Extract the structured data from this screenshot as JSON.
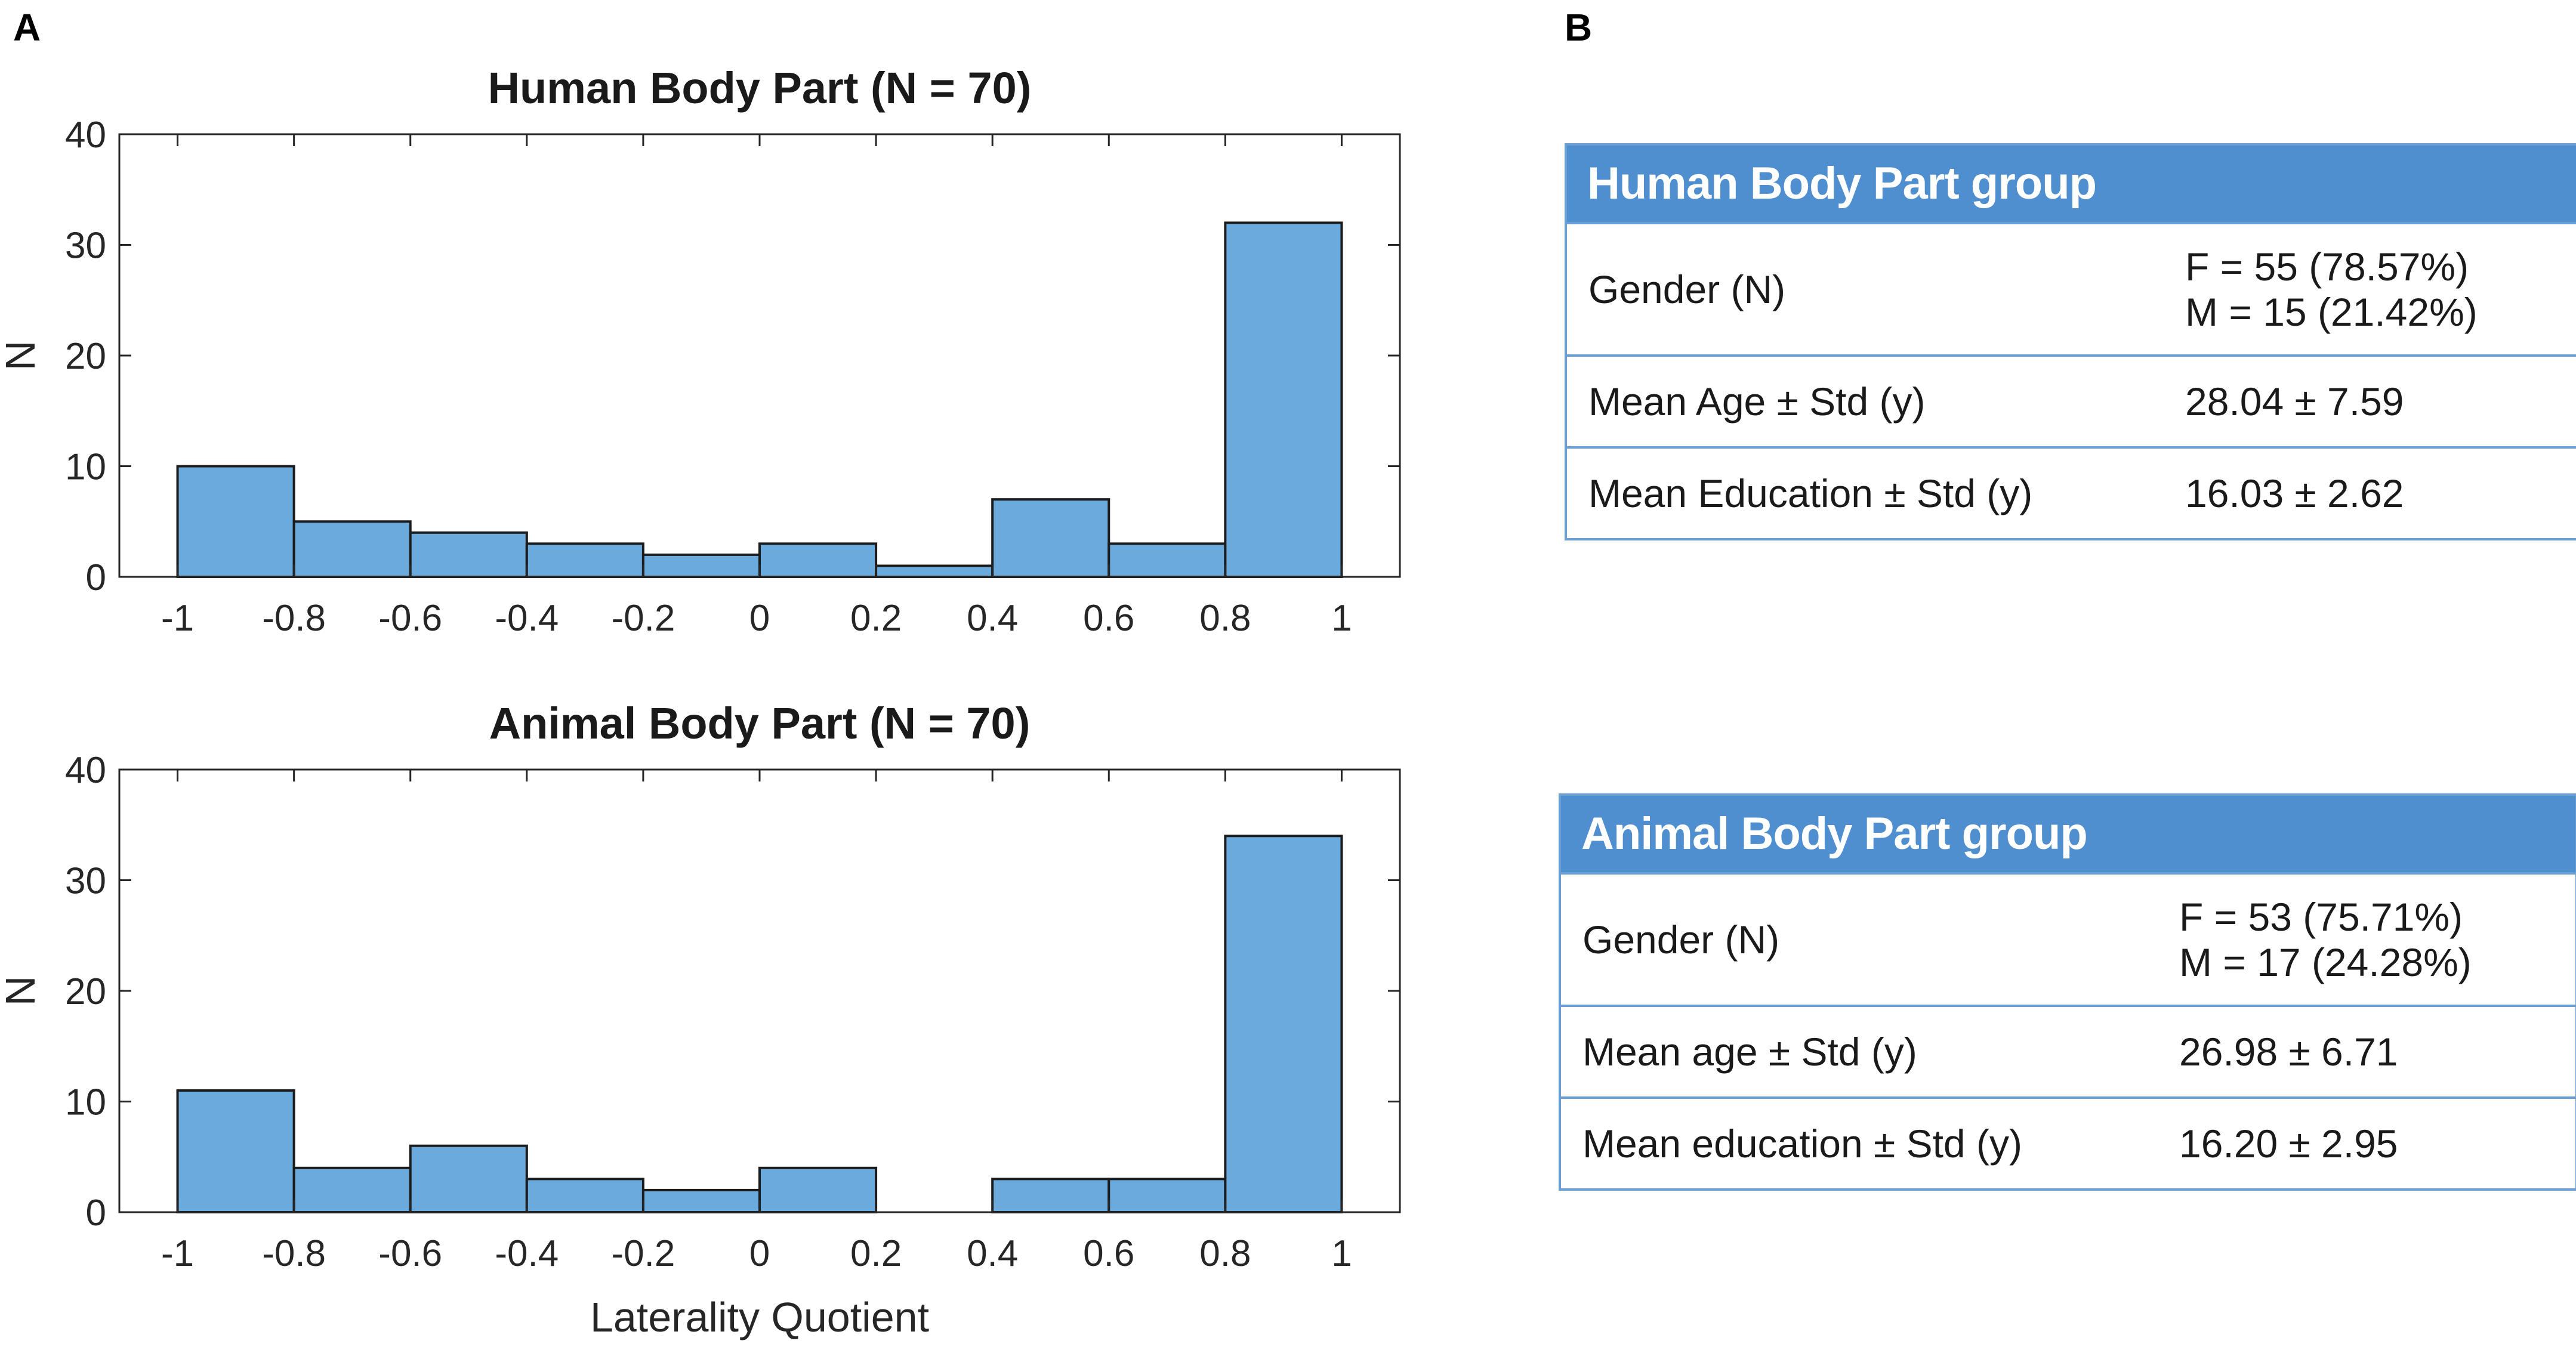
{
  "panels": {
    "a": "A",
    "b": "B"
  },
  "chart_data": [
    {
      "type": "bar",
      "title": "Human Body Part (N = 70)",
      "xlabel": "",
      "ylabel": "N",
      "bin_edges": [
        -1,
        -0.8,
        -0.6,
        -0.4,
        -0.2,
        0,
        0.2,
        0.4,
        0.6,
        0.8,
        1
      ],
      "values": [
        10,
        5,
        4,
        3,
        2,
        3,
        1,
        7,
        3,
        32
      ],
      "xlim": [
        -1.1,
        1.1
      ],
      "ylim": [
        0,
        40
      ],
      "xticks": [
        "-1",
        "-0.8",
        "-0.6",
        "-0.4",
        "-0.2",
        "0",
        "0.2",
        "0.4",
        "0.6",
        "0.8",
        "1"
      ],
      "yticks": [
        "0",
        "10",
        "20",
        "30",
        "40"
      ],
      "bar_color": "#6aaadd"
    },
    {
      "type": "bar",
      "title": "Animal Body Part (N = 70)",
      "xlabel": "Laterality Quotient",
      "ylabel": "N",
      "bin_edges": [
        -1,
        -0.8,
        -0.6,
        -0.4,
        -0.2,
        0,
        0.2,
        0.4,
        0.6,
        0.8,
        1
      ],
      "values": [
        11,
        4,
        6,
        3,
        2,
        4,
        0,
        3,
        3,
        34
      ],
      "xlim": [
        -1.1,
        1.1
      ],
      "ylim": [
        0,
        40
      ],
      "xticks": [
        "-1",
        "-0.8",
        "-0.6",
        "-0.4",
        "-0.2",
        "0",
        "0.2",
        "0.4",
        "0.6",
        "0.8",
        "1"
      ],
      "yticks": [
        "0",
        "10",
        "20",
        "30",
        "40"
      ],
      "bar_color": "#6aaadd"
    }
  ],
  "tables": [
    {
      "header": "Human Body Part group",
      "rows": [
        {
          "label": "Gender (N)",
          "value_line1": "F = 55 (78.57%)",
          "value_line2": "M = 15 (21.42%)"
        },
        {
          "label": "Mean Age ± Std (y)",
          "value": "28.04 ± 7.59"
        },
        {
          "label": "Mean Education ± Std  (y)",
          "value": "16.03 ± 2.62"
        }
      ]
    },
    {
      "header": "Animal Body Part group",
      "rows": [
        {
          "label": "Gender (N)",
          "value_line1": "F = 53 (75.71%)",
          "value_line2": "M = 17 (24.28%)"
        },
        {
          "label": "Mean age ± Std (y)",
          "value": "26.98 ± 6.71"
        },
        {
          "label": "Mean education ± Std  (y)",
          "value": "16.20 ± 2.95"
        }
      ]
    }
  ]
}
